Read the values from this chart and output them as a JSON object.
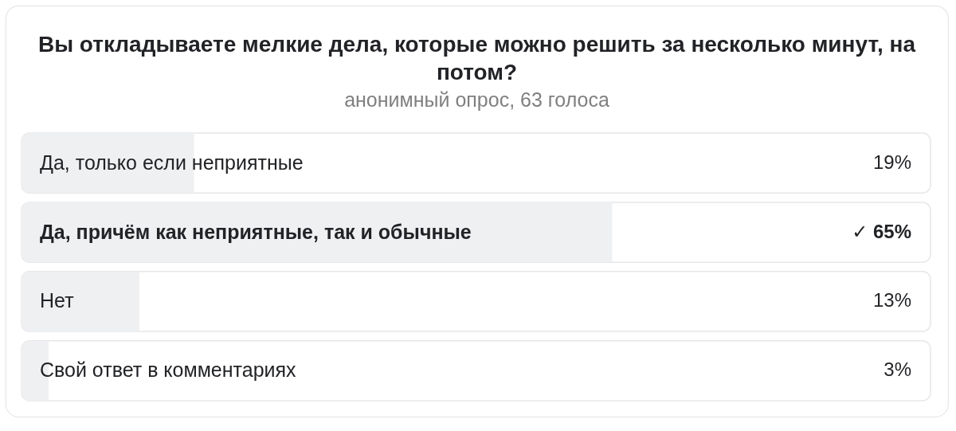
{
  "chart_data": {
    "type": "bar",
    "orientation": "horizontal",
    "title": "Вы откладываете мелкие дела, которые можно решить за несколько минут, на потом?",
    "subtitle": "анонимный опрос, 63 голоса",
    "categories": [
      "Да, только если неприятные",
      "Да, причём как неприятные, так и обычные",
      "Нет",
      "Свой ответ в комментариях"
    ],
    "values": [
      19,
      65,
      13,
      3
    ],
    "value_labels": [
      "19%",
      "✓ 65%",
      "13%",
      "3%"
    ],
    "color": "#eff0f2",
    "xlim": [
      0,
      100
    ],
    "tick_labels": "y"
  }
}
